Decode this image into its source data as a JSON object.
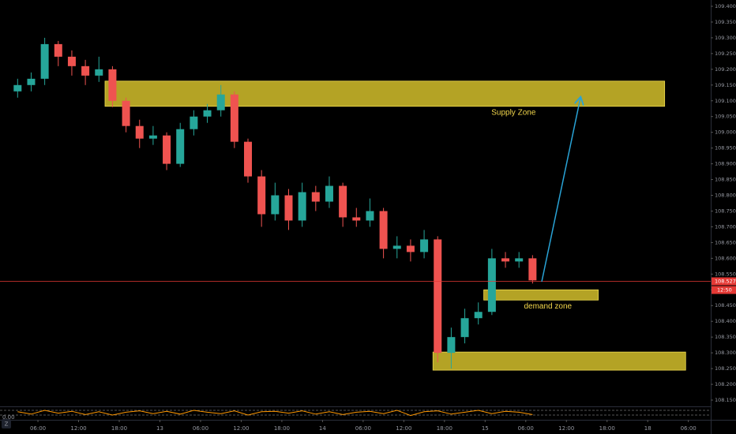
{
  "chart_data": {
    "type": "candlestick",
    "x": [
      -3,
      -1,
      1,
      3,
      5,
      7,
      9,
      11,
      13,
      15,
      17,
      19,
      21,
      23,
      25,
      27,
      29,
      31,
      33,
      35,
      37,
      39,
      41,
      43,
      45,
      47,
      49,
      51,
      53,
      55,
      57,
      59,
      61,
      63,
      65,
      67,
      69,
      71,
      73
    ],
    "open": [
      109.13,
      109.15,
      109.17,
      109.28,
      109.24,
      109.21,
      109.18,
      109.2,
      109.1,
      109.02,
      108.98,
      108.99,
      108.9,
      109.01,
      109.05,
      109.07,
      109.12,
      108.97,
      108.86,
      108.74,
      108.8,
      108.72,
      108.81,
      108.78,
      108.83,
      108.73,
      108.72,
      108.75,
      108.63,
      108.64,
      108.62,
      108.66,
      108.3,
      108.35,
      108.41,
      108.43,
      108.6,
      108.59,
      108.6
    ],
    "high": [
      109.17,
      109.19,
      109.3,
      109.29,
      109.26,
      109.23,
      109.24,
      109.21,
      109.11,
      109.04,
      109.02,
      109,
      109.03,
      109.07,
      109.09,
      109.15,
      109.13,
      108.98,
      108.88,
      108.84,
      108.82,
      108.84,
      108.83,
      108.86,
      108.84,
      108.76,
      108.79,
      108.76,
      108.67,
      108.66,
      108.69,
      108.67,
      108.38,
      108.44,
      108.46,
      108.63,
      108.62,
      108.62,
      108.61
    ],
    "low": [
      109.11,
      109.13,
      109.15,
      109.21,
      109.18,
      109.15,
      109.16,
      109.08,
      109,
      108.95,
      108.96,
      108.88,
      108.89,
      108.99,
      109.03,
      109.05,
      108.95,
      108.84,
      108.7,
      108.72,
      108.69,
      108.7,
      108.75,
      108.76,
      108.7,
      108.7,
      108.7,
      108.6,
      108.6,
      108.59,
      108.6,
      108.27,
      108.25,
      108.33,
      108.39,
      108.42,
      108.57,
      108.57,
      108.52
    ],
    "close": [
      109.15,
      109.17,
      109.28,
      109.24,
      109.21,
      109.18,
      109.2,
      109.1,
      109.02,
      108.98,
      108.99,
      108.9,
      109.01,
      109.05,
      109.07,
      109.12,
      108.97,
      108.86,
      108.74,
      108.8,
      108.72,
      108.81,
      108.78,
      108.83,
      108.73,
      108.72,
      108.75,
      108.63,
      108.64,
      108.62,
      108.66,
      108.3,
      108.35,
      108.41,
      108.43,
      108.6,
      108.59,
      108.6,
      108.53
    ],
    "up_color": "#26a69a",
    "down_color": "#ef5350",
    "xlim": [
      -5.6,
      99.3
    ],
    "xticks": [
      {
        "value": 0,
        "label": "06:00"
      },
      {
        "value": 6,
        "label": "12:00"
      },
      {
        "value": 12,
        "label": "18:00"
      },
      {
        "value": 18,
        "label": "13"
      },
      {
        "value": 24,
        "label": "06:00"
      },
      {
        "value": 30,
        "label": "12:00"
      },
      {
        "value": 36,
        "label": "18:00"
      },
      {
        "value": 42,
        "label": "14"
      },
      {
        "value": 48,
        "label": "06:00"
      },
      {
        "value": 54,
        "label": "12:00"
      },
      {
        "value": 60,
        "label": "18:00"
      },
      {
        "value": 66,
        "label": "15"
      },
      {
        "value": 72,
        "label": "06:00"
      },
      {
        "value": 78,
        "label": "12:00"
      },
      {
        "value": 84,
        "label": "18:00"
      },
      {
        "value": 90,
        "label": "18"
      },
      {
        "value": 96,
        "label": "06:00"
      }
    ],
    "ylim": [
      108.13,
      109.42
    ],
    "yticks": [
      {
        "value": 109.4,
        "label": "109.400"
      },
      {
        "value": 109.35,
        "label": "109.350"
      },
      {
        "value": 109.3,
        "label": "109.300"
      },
      {
        "value": 109.25,
        "label": "109.250"
      },
      {
        "value": 109.2,
        "label": "109.200"
      },
      {
        "value": 109.15,
        "label": "109.150"
      },
      {
        "value": 109.1,
        "label": "109.100"
      },
      {
        "value": 109.05,
        "label": "109.050"
      },
      {
        "value": 109,
        "label": "109.000"
      },
      {
        "value": 108.95,
        "label": "108.950"
      },
      {
        "value": 108.9,
        "label": "108.900"
      },
      {
        "value": 108.85,
        "label": "108.850"
      },
      {
        "value": 108.8,
        "label": "108.800"
      },
      {
        "value": 108.75,
        "label": "108.750"
      },
      {
        "value": 108.7,
        "label": "108.700"
      },
      {
        "value": 108.65,
        "label": "108.650"
      },
      {
        "value": 108.6,
        "label": "108.600"
      },
      {
        "value": 108.55,
        "label": "108.550"
      },
      {
        "value": 108.5,
        "label": "108.500"
      },
      {
        "value": 108.45,
        "label": "108.450"
      },
      {
        "value": 108.4,
        "label": "108.400"
      },
      {
        "value": 108.35,
        "label": "108.350"
      },
      {
        "value": 108.3,
        "label": "108.300"
      },
      {
        "value": 108.25,
        "label": "108.250"
      },
      {
        "value": 108.2,
        "label": "108.200"
      },
      {
        "value": 108.15,
        "label": "108.150"
      }
    ],
    "last_price": 108.527,
    "countdown": "12:50",
    "last_price_color": "#e53935",
    "zones": [
      {
        "x": [
          9.9,
          92.5
        ],
        "y": [
          109.0825,
          109.1625
        ],
        "label": "Supply Zone"
      },
      {
        "x": [
          65.8,
          82.7
        ],
        "y": [
          108.4675,
          108.5
        ],
        "label": "demand zone"
      },
      {
        "x": [
          58.3,
          95.6
        ],
        "y": [
          108.245,
          108.3025
        ]
      }
    ],
    "zone_color": "#d4bf2c",
    "indicator": {
      "label": "0.00",
      "color": "#ff9800",
      "ylim": [
        -1,
        1
      ],
      "values": [
        0.2,
        -0.3,
        0.5,
        -0.1,
        0.3,
        -0.4,
        0.2,
        -0.5,
        0.1,
        0.4,
        -0.2,
        0.3,
        -0.3,
        0.5,
        0.1,
        -0.2,
        0.4,
        -0.5,
        0.2,
        0.3,
        -0.1,
        0.4,
        -0.3,
        0.2,
        -0.4,
        0.1,
        0.3,
        -0.2,
        0.5,
        -0.6,
        0.2,
        0.4,
        -0.3,
        0.1,
        0.5,
        -0.2,
        0.3,
        0.1,
        -0.4
      ]
    }
  },
  "ui": {
    "reset_button": "Z"
  }
}
